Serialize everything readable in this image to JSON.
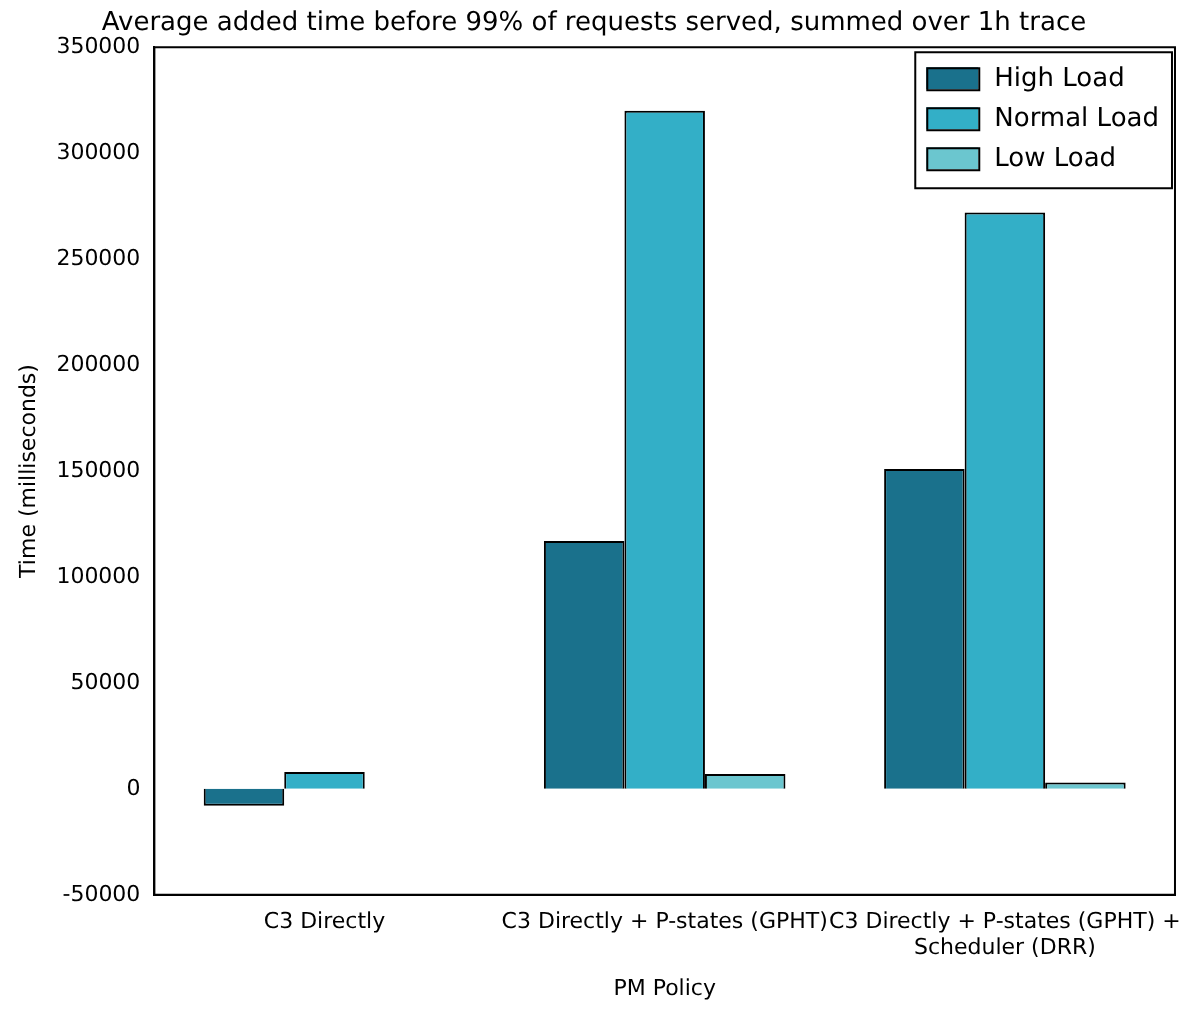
{
  "chart_data": {
    "type": "bar",
    "title": "Average added time before 99% of requests served, summed over 1h trace",
    "xlabel": "PM Policy",
    "ylabel": "Time (milliseconds)",
    "categories": [
      "C3 Directly",
      "C3 Directly + P-states (GPHT)",
      "C3 Directly + P-states (GPHT) + Scheduler (DRR)"
    ],
    "series": [
      {
        "name": "High Load",
        "color": "#1a718c",
        "values": [
          -8000,
          117000,
          151000
        ]
      },
      {
        "name": "Normal Load",
        "color": "#33afc7",
        "values": [
          8000,
          320000,
          272000
        ]
      },
      {
        "name": "Low Load",
        "color": "#6bc6cf",
        "values": [
          0,
          7000,
          3000
        ]
      }
    ],
    "ylim": [
      -50000,
      350000
    ],
    "yticks": [
      -50000,
      0,
      50000,
      100000,
      150000,
      200000,
      250000,
      300000,
      350000
    ],
    "grid": false,
    "legend": "top right"
  }
}
